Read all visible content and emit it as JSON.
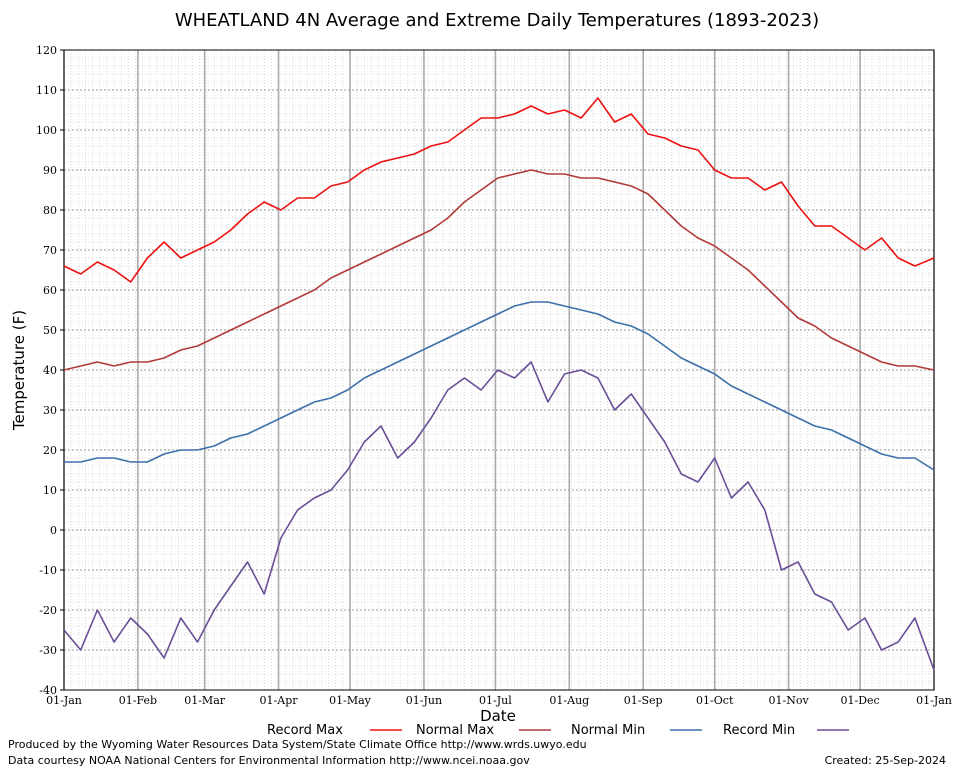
{
  "chart_data": {
    "type": "line",
    "title": "WHEATLAND 4N Average and Extreme Daily Temperatures (1893-2023)",
    "xlabel": "Date",
    "ylabel": "Temperature (F)",
    "ylim": [
      -40,
      120
    ],
    "yticks": [
      -40,
      -30,
      -20,
      -10,
      0,
      10,
      20,
      30,
      40,
      50,
      60,
      70,
      80,
      90,
      100,
      110,
      120
    ],
    "xlim_days": [
      0,
      365
    ],
    "xticks": [
      {
        "label": "01-Jan",
        "day": 0
      },
      {
        "label": "01-Feb",
        "day": 31
      },
      {
        "label": "01-Mar",
        "day": 59
      },
      {
        "label": "01-Apr",
        "day": 90
      },
      {
        "label": "01-May",
        "day": 120
      },
      {
        "label": "01-Jun",
        "day": 151
      },
      {
        "label": "01-Jul",
        "day": 181
      },
      {
        "label": "01-Aug",
        "day": 212
      },
      {
        "label": "01-Sep",
        "day": 243
      },
      {
        "label": "01-Oct",
        "day": 273
      },
      {
        "label": "01-Nov",
        "day": 304
      },
      {
        "label": "01-Dec",
        "day": 334
      },
      {
        "label": "01-Jan",
        "day": 365
      }
    ],
    "grid": true,
    "legend_position": "bottom",
    "series": [
      {
        "name": "Record Max",
        "color": "#ee1111",
        "x_day": [
          0,
          7,
          14,
          21,
          28,
          35,
          42,
          49,
          56,
          63,
          70,
          77,
          84,
          91,
          98,
          105,
          112,
          119,
          126,
          133,
          140,
          147,
          154,
          161,
          168,
          175,
          182,
          189,
          196,
          203,
          210,
          217,
          224,
          231,
          238,
          245,
          252,
          259,
          266,
          273,
          280,
          287,
          294,
          301,
          308,
          315,
          322,
          329,
          336,
          343,
          350,
          357,
          365
        ],
        "values": [
          66,
          64,
          67,
          65,
          62,
          68,
          72,
          68,
          70,
          72,
          75,
          79,
          82,
          80,
          83,
          83,
          86,
          87,
          90,
          92,
          93,
          94,
          96,
          97,
          100,
          103,
          103,
          104,
          106,
          104,
          105,
          103,
          108,
          102,
          104,
          99,
          98,
          96,
          95,
          90,
          88,
          88,
          85,
          87,
          81,
          76,
          76,
          73,
          70,
          73,
          68,
          66,
          68
        ]
      },
      {
        "name": "Normal Max",
        "color": "#b13a3a",
        "x_day": [
          0,
          7,
          14,
          21,
          28,
          35,
          42,
          49,
          56,
          63,
          70,
          77,
          84,
          91,
          98,
          105,
          112,
          119,
          126,
          133,
          140,
          147,
          154,
          161,
          168,
          175,
          182,
          189,
          196,
          203,
          210,
          217,
          224,
          231,
          238,
          245,
          252,
          259,
          266,
          273,
          280,
          287,
          294,
          301,
          308,
          315,
          322,
          329,
          336,
          343,
          350,
          357,
          365
        ],
        "values": [
          40,
          41,
          42,
          41,
          42,
          42,
          43,
          45,
          46,
          48,
          50,
          52,
          54,
          56,
          58,
          60,
          63,
          65,
          67,
          69,
          71,
          73,
          75,
          78,
          82,
          85,
          88,
          89,
          90,
          89,
          89,
          88,
          88,
          87,
          86,
          84,
          80,
          76,
          73,
          71,
          68,
          65,
          61,
          57,
          53,
          51,
          48,
          46,
          44,
          42,
          41,
          41,
          40
        ]
      },
      {
        "name": "Normal Min",
        "color": "#3c70a8",
        "x_day": [
          0,
          7,
          14,
          21,
          28,
          35,
          42,
          49,
          56,
          63,
          70,
          77,
          84,
          91,
          98,
          105,
          112,
          119,
          126,
          133,
          140,
          147,
          154,
          161,
          168,
          175,
          182,
          189,
          196,
          203,
          210,
          217,
          224,
          231,
          238,
          245,
          252,
          259,
          266,
          273,
          280,
          287,
          294,
          301,
          308,
          315,
          322,
          329,
          336,
          343,
          350,
          357,
          365
        ],
        "values": [
          17,
          17,
          18,
          18,
          17,
          17,
          19,
          20,
          20,
          21,
          23,
          24,
          26,
          28,
          30,
          32,
          33,
          35,
          38,
          40,
          42,
          44,
          46,
          48,
          50,
          52,
          54,
          56,
          57,
          57,
          56,
          55,
          54,
          52,
          51,
          49,
          46,
          43,
          41,
          39,
          36,
          34,
          32,
          30,
          28,
          26,
          25,
          23,
          21,
          19,
          18,
          18,
          15
        ]
      },
      {
        "name": "Record Min",
        "color": "#6a4f98",
        "x_day": [
          0,
          7,
          14,
          21,
          28,
          35,
          42,
          49,
          56,
          63,
          70,
          77,
          84,
          91,
          98,
          105,
          112,
          119,
          126,
          133,
          140,
          147,
          154,
          161,
          168,
          175,
          182,
          189,
          196,
          203,
          210,
          217,
          224,
          231,
          238,
          245,
          252,
          259,
          266,
          273,
          280,
          287,
          294,
          301,
          308,
          315,
          322,
          329,
          336,
          343,
          350,
          357,
          365
        ],
        "values": [
          -25,
          -30,
          -20,
          -28,
          -22,
          -26,
          -32,
          -22,
          -28,
          -20,
          -14,
          -8,
          -16,
          -2,
          5,
          8,
          10,
          15,
          22,
          26,
          18,
          22,
          28,
          35,
          38,
          35,
          40,
          38,
          42,
          32,
          39,
          40,
          38,
          30,
          34,
          28,
          22,
          14,
          12,
          18,
          8,
          12,
          5,
          -10,
          -8,
          -16,
          -18,
          -25,
          -22,
          -30,
          -28,
          -22,
          -35
        ]
      }
    ]
  },
  "legend": {
    "items": [
      "Record Max",
      "Normal Max",
      "Normal Min",
      "Record Min"
    ]
  },
  "footer": {
    "line1": "Produced by the Wyoming Water Resources Data System/State Climate Office http://www.wrds.uwyo.edu",
    "line2": "Data courtesy NOAA National Centers for Environmental Information http://www.ncei.noaa.gov",
    "created": "Created:  25-Sep-2024"
  }
}
